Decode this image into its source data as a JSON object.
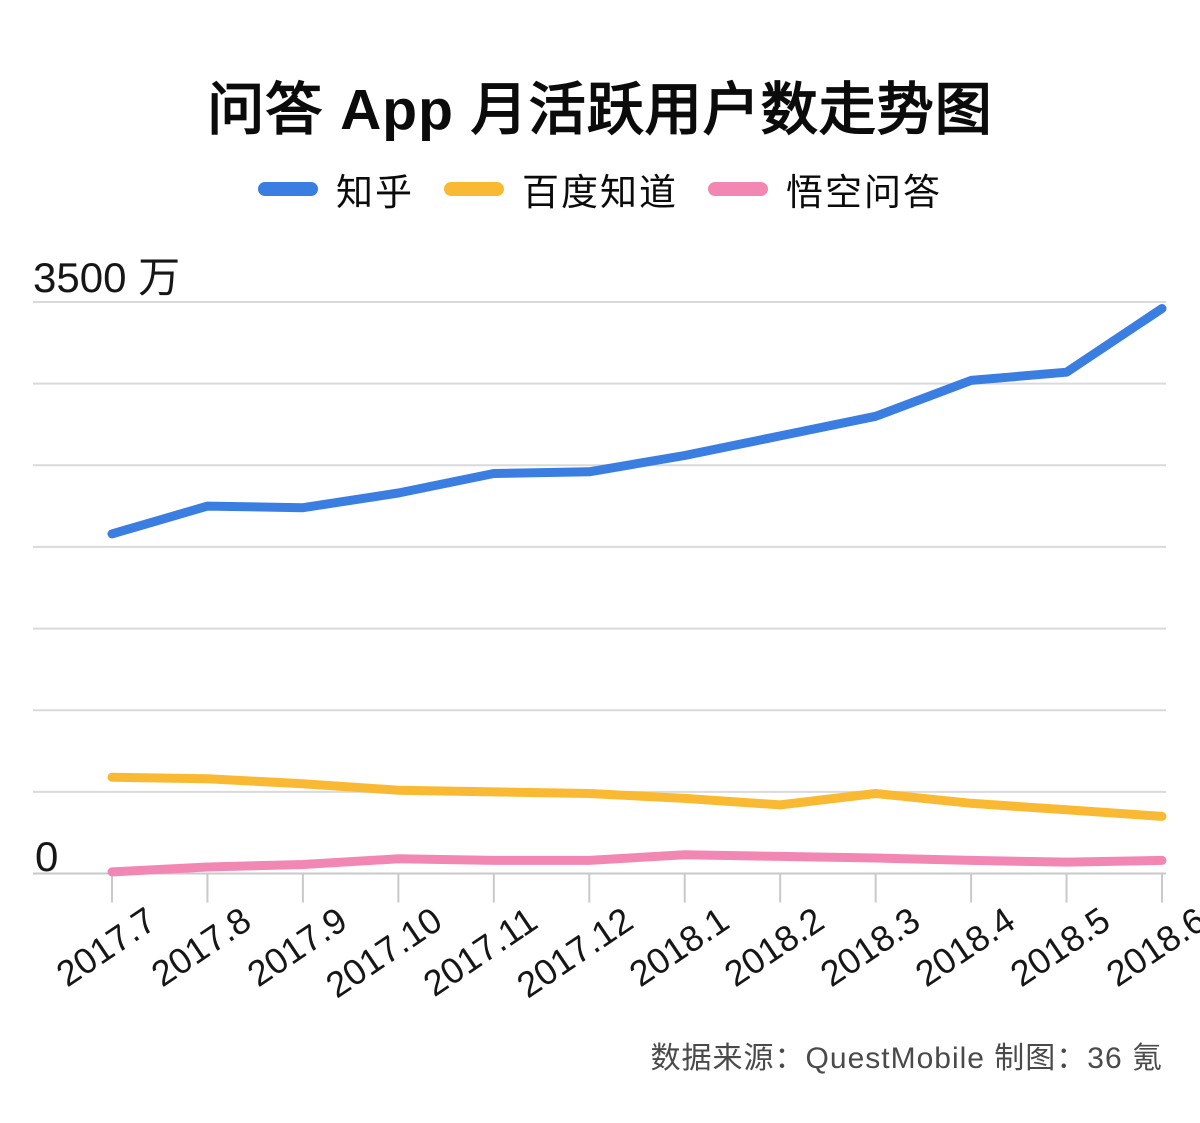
{
  "page": {
    "background": "#ffffff"
  },
  "title": "问答 App 月活跃用户数走势图",
  "legend": {
    "items": [
      {
        "label": "知乎",
        "color": "#3b7ee2"
      },
      {
        "label": "百度知道",
        "color": "#fab933"
      },
      {
        "label": "悟空问答",
        "color": "#f287b4"
      }
    ]
  },
  "footer": {
    "source_note": "数据来源：QuestMobile  制图：36 氪"
  },
  "colors": {
    "gridline": "#dadada",
    "axis": "#c9c9c9",
    "text": "#161616",
    "footer_text": "#4a4a4a"
  },
  "chart_data": {
    "type": "line",
    "title": "问答 App 月活跃用户数走势图",
    "unit": "万",
    "legend_position": "top",
    "grid": true,
    "y_axis": {
      "top_label": "3500 万",
      "bottom_label": "0",
      "ylim": [
        0,
        3500
      ],
      "gridline_step": 500
    },
    "categories": [
      "2017.7",
      "2017.8",
      "2017.9",
      "2017.10",
      "2017.11",
      "2017.12",
      "2018.1",
      "2018.2",
      "2018.3",
      "2018.4",
      "2018.5",
      "2018.6"
    ],
    "series": [
      {
        "name": "知乎",
        "color": "#3b7ee2",
        "values": [
          2080,
          2250,
          2240,
          2330,
          2450,
          2460,
          2560,
          2680,
          2800,
          3020,
          3070,
          3460
        ]
      },
      {
        "name": "百度知道",
        "color": "#fab933",
        "values": [
          590,
          580,
          550,
          510,
          500,
          490,
          460,
          420,
          490,
          430,
          390,
          350
        ]
      },
      {
        "name": "悟空问答",
        "color": "#f287b4",
        "values": [
          10,
          40,
          55,
          90,
          80,
          80,
          115,
          105,
          95,
          80,
          70,
          80
        ]
      }
    ]
  }
}
